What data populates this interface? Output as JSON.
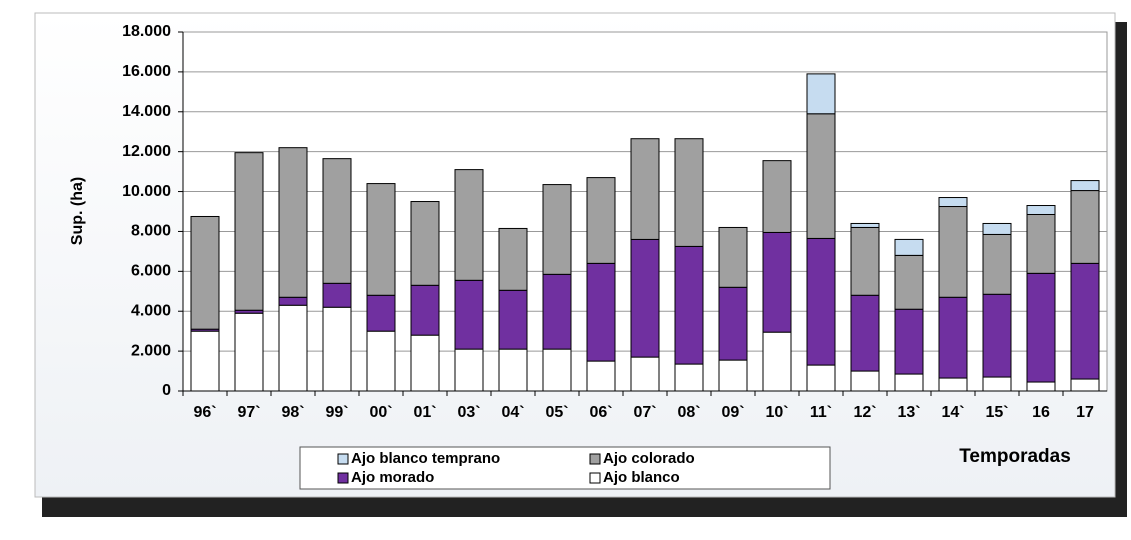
{
  "chart_data": {
    "type": "stacked_bar",
    "y_label": "Sup. (ha)",
    "x_label": "Temporadas",
    "categories": [
      "96`",
      "97`",
      "98`",
      "99`",
      "00`",
      "01`",
      "03`",
      "04`",
      "05`",
      "06`",
      "07`",
      "08`",
      "09`",
      "10`",
      "11`",
      "12`",
      "13`",
      "14`",
      "15`",
      "16",
      "17"
    ],
    "series": [
      {
        "name": "Ajo blanco",
        "color": "#ffffff",
        "values": [
          3000,
          3900,
          4300,
          4200,
          3000,
          2800,
          2100,
          2100,
          2100,
          1500,
          1700,
          1350,
          1550,
          2950,
          1300,
          1000,
          850,
          650,
          700,
          450,
          600
        ]
      },
      {
        "name": "Ajo morado",
        "color": "#7030a0",
        "values": [
          100,
          150,
          400,
          1200,
          1800,
          2500,
          3450,
          2950,
          3750,
          4900,
          5900,
          5900,
          3650,
          5000,
          6350,
          3800,
          3250,
          4050,
          4150,
          5450,
          5800
        ]
      },
      {
        "name": "Ajo colorado",
        "color": "#a0a0a0",
        "values": [
          5650,
          7900,
          7500,
          6250,
          5600,
          4200,
          5550,
          3100,
          4500,
          4300,
          5050,
          5400,
          3000,
          3600,
          6250,
          3400,
          2700,
          4550,
          3000,
          2950,
          3650
        ]
      },
      {
        "name": "Ajo blanco temprano",
        "color": "#c6dcf0",
        "values": [
          0,
          0,
          0,
          0,
          0,
          0,
          0,
          0,
          0,
          0,
          0,
          0,
          0,
          0,
          2000,
          200,
          800,
          450,
          550,
          450,
          500
        ]
      }
    ],
    "ylim": [
      0,
      18000
    ],
    "yticks": [
      0,
      {
        "value": 2000,
        "label": "2.000"
      },
      {
        "value": 4000,
        "label": "4.000"
      },
      {
        "value": 6000,
        "label": "6.000"
      },
      {
        "value": 8000,
        "label": "8.000"
      },
      {
        "value": 10000,
        "label": "10.000"
      },
      {
        "value": 12000,
        "label": "12.000"
      },
      {
        "value": 14000,
        "label": "14.000"
      },
      {
        "value": 16000,
        "label": "16.000"
      },
      {
        "value": 18000,
        "label": "18.000"
      }
    ],
    "grid": true
  }
}
